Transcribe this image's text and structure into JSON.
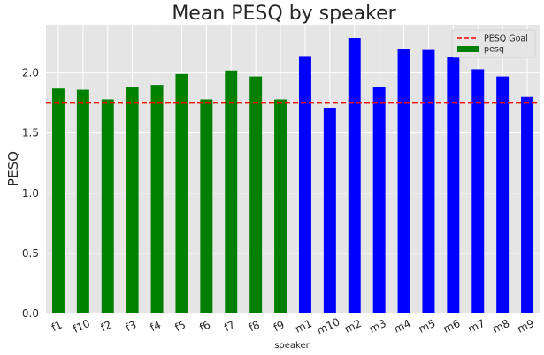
{
  "chart_data": {
    "type": "bar",
    "title": "Mean PESQ by speaker",
    "xlabel": "speaker",
    "ylabel": "PESQ",
    "ylim": [
      0,
      2.4
    ],
    "yticks": [
      "0.0",
      "0.5",
      "1.0",
      "1.5",
      "2.0"
    ],
    "grid": true,
    "legend_position": "top-right",
    "categories": [
      "f1",
      "f10",
      "f2",
      "f3",
      "f4",
      "f5",
      "f6",
      "f7",
      "f8",
      "f9",
      "m1",
      "m10",
      "m2",
      "m3",
      "m4",
      "m5",
      "m6",
      "m7",
      "m8",
      "m9"
    ],
    "series": [
      {
        "name": "pesq",
        "values": [
          1.87,
          1.86,
          1.78,
          1.88,
          1.9,
          1.99,
          1.78,
          2.02,
          1.97,
          1.78,
          2.14,
          1.71,
          2.29,
          1.88,
          2.2,
          2.19,
          2.13,
          2.03,
          1.97,
          1.8
        ],
        "colors": [
          "#008000",
          "#008000",
          "#008000",
          "#008000",
          "#008000",
          "#008000",
          "#008000",
          "#008000",
          "#008000",
          "#008000",
          "#0000ff",
          "#0000ff",
          "#0000ff",
          "#0000ff",
          "#0000ff",
          "#0000ff",
          "#0000ff",
          "#0000ff",
          "#0000ff",
          "#0000ff"
        ]
      }
    ],
    "reference_line": {
      "name": "PESQ Goal",
      "value": 1.75,
      "color": "#ff0000",
      "style": "dashed"
    },
    "legend": [
      {
        "label": "PESQ Goal",
        "kind": "dashed-line",
        "color": "#ff0000"
      },
      {
        "label": "pesq",
        "kind": "patch",
        "color": "#008000"
      }
    ],
    "background_color": "#e5e5e5",
    "grid_color": "#ffffff"
  }
}
